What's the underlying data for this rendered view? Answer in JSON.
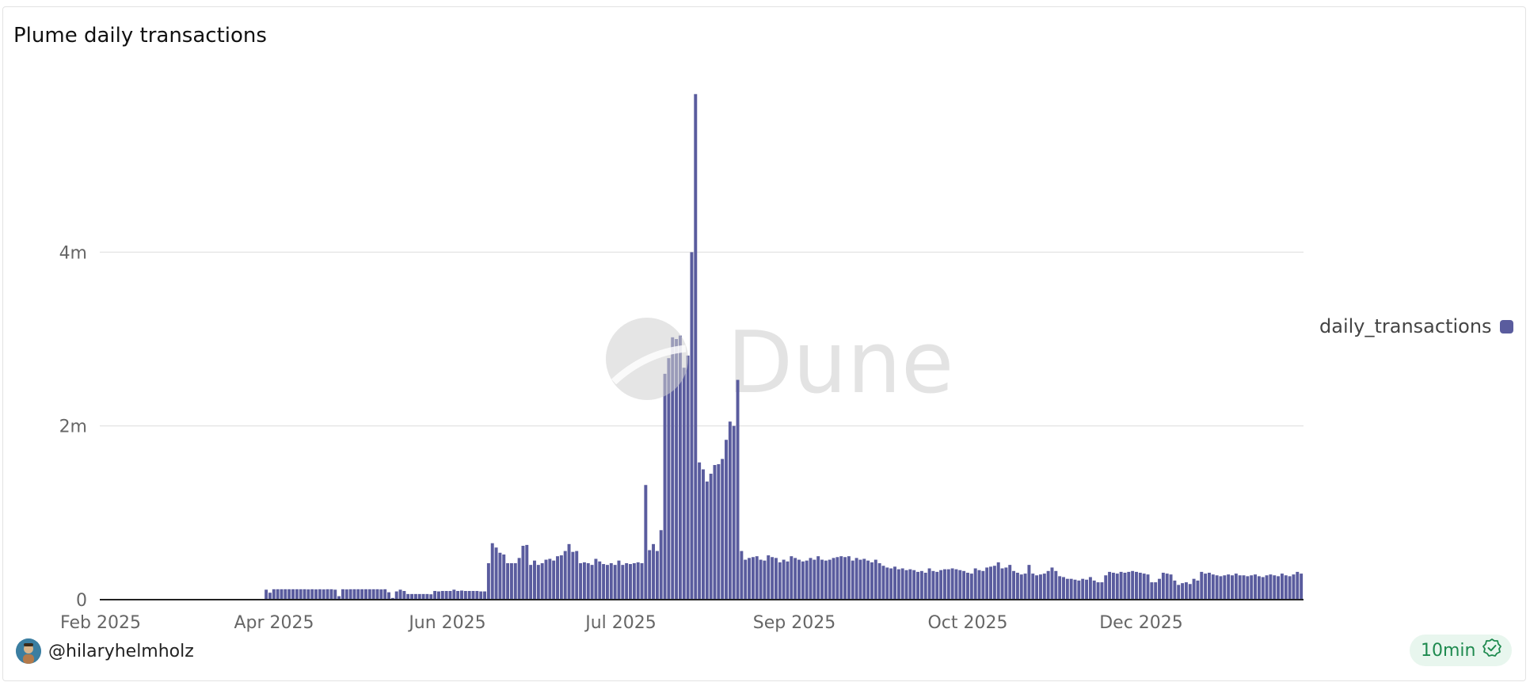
{
  "title": "Plume daily transactions",
  "watermark": "Dune",
  "author": "@hilaryhelmholz",
  "badge": "10min",
  "colors": {
    "bar": "#5a5c9e",
    "grid": "#e6e6e6",
    "axis_text": "#666666",
    "badge_bg": "#e8f6ee",
    "badge_text": "#1e8a4f"
  },
  "icons": {
    "badge": "check-circle-icon",
    "avatar": "user-avatar"
  },
  "legend": [
    {
      "name": "daily_transactions",
      "color": "#5a5c9e"
    }
  ],
  "chart_data": {
    "type": "bar",
    "title": "Plume daily transactions",
    "y_ticks": [
      "0",
      "2m",
      "4m"
    ],
    "y_tick_values": [
      0,
      2000000,
      4000000
    ],
    "ylim": [
      0,
      5900000
    ],
    "x_tick_labels": [
      "Feb 2025",
      "Apr 2025",
      "Jun 2025",
      "Jul 2025",
      "Sep 2025",
      "Oct 2025",
      "Dec 2025"
    ],
    "grid": true,
    "legend_position": "right",
    "series": [
      {
        "name": "daily_transactions",
        "values": [
          2000,
          2000,
          2000,
          2000,
          2000,
          2000,
          2000,
          2000,
          2000,
          2000,
          2000,
          2000,
          2000,
          2000,
          2000,
          2000,
          2000,
          2000,
          2000,
          2000,
          2000,
          2000,
          2000,
          2000,
          2000,
          2000,
          2000,
          2000,
          2000,
          2000,
          2000,
          2000,
          2000,
          2000,
          2000,
          2000,
          2000,
          2000,
          2000,
          2000,
          2000,
          2000,
          2000,
          115000,
          80000,
          120000,
          120000,
          120000,
          120000,
          120000,
          120000,
          120000,
          120000,
          120000,
          118000,
          120000,
          118000,
          120000,
          118000,
          120000,
          120000,
          115000,
          40000,
          120000,
          118000,
          120000,
          120000,
          120000,
          120000,
          120000,
          120000,
          120000,
          120000,
          118000,
          120000,
          85000,
          20000,
          95000,
          115000,
          100000,
          65000,
          65000,
          65000,
          65000,
          65000,
          65000,
          62000,
          100000,
          95000,
          100000,
          100000,
          100000,
          115000,
          100000,
          105000,
          100000,
          100000,
          100000,
          100000,
          95000,
          95000,
          420000,
          650000,
          600000,
          540000,
          520000,
          420000,
          420000,
          420000,
          480000,
          620000,
          630000,
          400000,
          450000,
          400000,
          420000,
          460000,
          470000,
          450000,
          500000,
          510000,
          560000,
          640000,
          550000,
          560000,
          420000,
          430000,
          420000,
          400000,
          470000,
          440000,
          410000,
          400000,
          420000,
          400000,
          450000,
          400000,
          420000,
          410000,
          420000,
          430000,
          420000,
          1320000,
          570000,
          640000,
          560000,
          800000,
          2600000,
          2780000,
          3020000,
          3000000,
          3040000,
          2670000,
          2810000,
          4000000,
          5820000,
          1580000,
          1500000,
          1360000,
          1450000,
          1550000,
          1560000,
          1620000,
          1840000,
          2050000,
          2000000,
          2530000,
          560000,
          460000,
          480000,
          490000,
          500000,
          460000,
          450000,
          510000,
          490000,
          480000,
          430000,
          460000,
          440000,
          500000,
          480000,
          460000,
          440000,
          450000,
          480000,
          460000,
          500000,
          460000,
          450000,
          460000,
          480000,
          490000,
          500000,
          490000,
          500000,
          450000,
          480000,
          460000,
          470000,
          450000,
          430000,
          460000,
          420000,
          390000,
          370000,
          360000,
          380000,
          350000,
          360000,
          340000,
          350000,
          340000,
          320000,
          330000,
          310000,
          360000,
          330000,
          320000,
          340000,
          350000,
          350000,
          360000,
          350000,
          340000,
          330000,
          310000,
          300000,
          360000,
          340000,
          330000,
          370000,
          380000,
          390000,
          430000,
          360000,
          370000,
          400000,
          330000,
          310000,
          290000,
          300000,
          400000,
          300000,
          280000,
          290000,
          300000,
          330000,
          370000,
          330000,
          270000,
          260000,
          240000,
          240000,
          230000,
          220000,
          240000,
          230000,
          260000,
          220000,
          200000,
          200000,
          280000,
          320000,
          310000,
          300000,
          320000,
          310000,
          320000,
          330000,
          320000,
          310000,
          300000,
          290000,
          200000,
          200000,
          240000,
          310000,
          300000,
          290000,
          220000,
          170000,
          190000,
          200000,
          180000,
          240000,
          220000,
          320000,
          300000,
          310000,
          290000,
          280000,
          270000,
          280000,
          290000,
          280000,
          300000,
          280000,
          280000,
          270000,
          280000,
          290000,
          270000,
          260000,
          280000,
          290000,
          280000,
          270000,
          300000,
          280000,
          270000,
          290000,
          320000,
          300000
        ]
      }
    ]
  }
}
